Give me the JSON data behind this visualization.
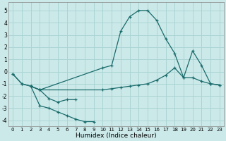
{
  "xlabel": "Humidex (Indice chaleur)",
  "background_color": "#cce9e9",
  "grid_color": "#aad4d4",
  "line_color": "#1a6b6b",
  "xlim": [
    -0.5,
    23.5
  ],
  "ylim": [
    -4.5,
    5.7
  ],
  "xticks": [
    0,
    1,
    2,
    3,
    4,
    5,
    6,
    7,
    8,
    9,
    10,
    11,
    12,
    13,
    14,
    15,
    16,
    17,
    18,
    19,
    20,
    21,
    22,
    23
  ],
  "yticks": [
    -4,
    -3,
    -2,
    -1,
    0,
    1,
    2,
    3,
    4,
    5
  ],
  "line1_x": [
    0,
    1,
    2,
    3,
    4,
    5,
    6,
    7,
    8,
    9
  ],
  "line1_y": [
    -0.2,
    -1.0,
    -1.2,
    -2.8,
    -3.0,
    -3.3,
    -3.6,
    -3.9,
    -4.1,
    -4.1
  ],
  "line2_x": [
    0,
    1,
    2,
    3,
    4,
    5,
    6,
    7
  ],
  "line2_y": [
    -0.2,
    -1.0,
    -1.2,
    -1.5,
    -2.2,
    -2.5,
    -2.3,
    -2.3
  ],
  "line3_x": [
    2,
    3,
    10,
    11,
    12,
    13,
    14,
    15,
    16,
    17,
    18,
    19,
    20,
    21,
    22,
    23
  ],
  "line3_y": [
    -1.2,
    -1.5,
    0.3,
    0.5,
    3.3,
    4.5,
    5.0,
    5.0,
    4.2,
    2.7,
    1.5,
    -0.5,
    1.7,
    0.5,
    -1.0,
    -1.1
  ],
  "line4_x": [
    2,
    3,
    10,
    11,
    12,
    13,
    14,
    15,
    16,
    17,
    18,
    19,
    20,
    21,
    22,
    23
  ],
  "line4_y": [
    -1.2,
    -1.5,
    -1.5,
    -1.4,
    -1.3,
    -1.2,
    -1.1,
    -1.0,
    -0.7,
    -0.3,
    0.3,
    -0.5,
    -0.5,
    -0.8,
    -1.0,
    -1.1
  ]
}
